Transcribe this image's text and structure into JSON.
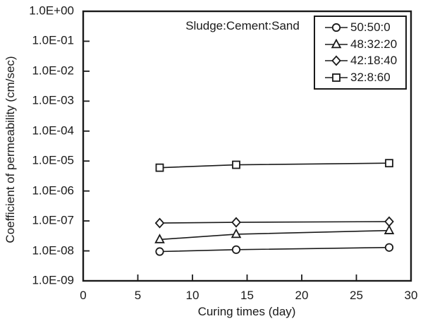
{
  "figure": {
    "in_plot_label": "Sludge:Cement:Sand",
    "x_axis": {
      "label": "Curing times (day)",
      "ticks": [
        0,
        5,
        10,
        15,
        20,
        25,
        30
      ],
      "range": [
        0,
        30
      ]
    },
    "y_axis": {
      "label": "Coefficient of permeability (cm/sec)",
      "scale": "log",
      "tick_labels": [
        "1.0E+00",
        "1.0E-01",
        "1.0E-02",
        "1.0E-03",
        "1.0E-04",
        "1.0E-05",
        "1.0E-06",
        "1.0E-07",
        "1.0E-08",
        "1.0E-09"
      ],
      "range": [
        1e-09,
        1
      ]
    }
  },
  "chart_data": {
    "type": "line",
    "title": "",
    "xlabel": "Curing times (day)",
    "ylabel": "Coefficient of permeability (cm/sec)",
    "x": [
      7,
      14,
      28
    ],
    "xlim": [
      0,
      30
    ],
    "ylim": [
      1e-09,
      1
    ],
    "y_scale": "log",
    "grid": false,
    "legend_title": "Sludge:Cement:Sand",
    "legend_position": "top-right-inside",
    "series": [
      {
        "name": "50:50:0",
        "marker": "circle",
        "color": "#1a1a1a",
        "values": [
          9.5e-09,
          1.1e-08,
          1.3e-08
        ]
      },
      {
        "name": "48:32:20",
        "marker": "triangle",
        "color": "#1a1a1a",
        "values": [
          2.4e-08,
          3.6e-08,
          4.8e-08
        ]
      },
      {
        "name": "42:18:40",
        "marker": "diamond",
        "color": "#1a1a1a",
        "values": [
          8.5e-08,
          9e-08,
          9.5e-08
        ]
      },
      {
        "name": "32:8:60",
        "marker": "square",
        "color": "#1a1a1a",
        "values": [
          6e-06,
          7.5e-06,
          8.5e-06
        ]
      }
    ]
  },
  "colors": {
    "foreground": "#1a1a1a",
    "background": "#ffffff",
    "marker_fill": "#ffffff"
  }
}
